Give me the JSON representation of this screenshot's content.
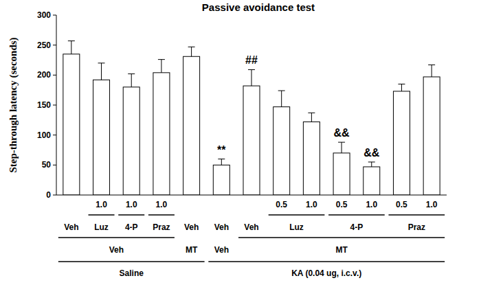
{
  "chart_data": {
    "type": "bar",
    "title": "Passive avoidance test",
    "y_label": "Step-through latency (seconds)",
    "categories": [
      null,
      "1.0",
      "1.0",
      "1.0",
      null,
      null,
      null,
      "0.5",
      "1.0",
      "0.5",
      "1.0",
      "0.5",
      "1.0"
    ],
    "values": [
      235,
      192,
      180,
      204,
      231,
      50,
      182,
      147,
      122,
      70,
      47,
      173,
      197
    ],
    "errors": [
      22,
      28,
      22,
      22,
      16,
      10,
      27,
      27,
      15,
      18,
      8,
      12,
      20
    ],
    "color": "#ffffff",
    "ylim": [
      0,
      300
    ],
    "yticks": [
      0,
      50,
      100,
      150,
      200,
      250,
      300
    ],
    "grid": false,
    "annotations": [
      {
        "index": 5,
        "text": "**"
      },
      {
        "index": 6,
        "text": "##"
      },
      {
        "index": 9,
        "text": "&&"
      },
      {
        "index": 10,
        "text": "&&"
      }
    ],
    "group_rows": [
      [
        {
          "label": "Veh",
          "from": 0,
          "to": 0
        },
        {
          "label": "Luz",
          "from": 1,
          "to": 1
        },
        {
          "label": "4-P",
          "from": 2,
          "to": 2
        },
        {
          "label": "Praz",
          "from": 3,
          "to": 3
        },
        {
          "label": "Veh",
          "from": 4,
          "to": 4
        },
        {
          "label": "Veh",
          "from": 5,
          "to": 5
        },
        {
          "label": "Veh",
          "from": 6,
          "to": 6
        },
        {
          "label": "Luz",
          "from": 7,
          "to": 8
        },
        {
          "label": "4-P",
          "from": 9,
          "to": 10
        },
        {
          "label": "Praz",
          "from": 11,
          "to": 12
        }
      ],
      [
        {
          "label": "Veh",
          "from": 0,
          "to": 3
        },
        {
          "label": "MT",
          "from": 4,
          "to": 4
        },
        {
          "label": "Veh",
          "from": 5,
          "to": 5
        },
        {
          "label": "MT",
          "from": 6,
          "to": 12
        }
      ],
      [
        {
          "label": "Saline",
          "from": 0,
          "to": 4
        },
        {
          "label": "KA (0.04 ug, i.c.v.)",
          "from": 5,
          "to": 12
        }
      ]
    ]
  }
}
